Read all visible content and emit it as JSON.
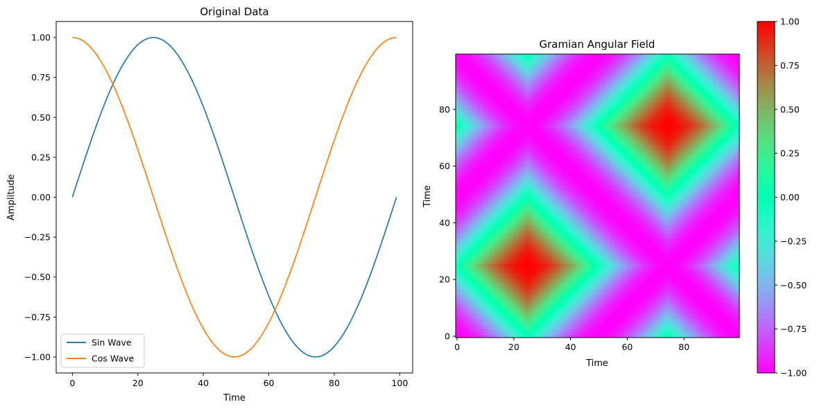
{
  "chart_data": [
    {
      "type": "line",
      "title": "Original Data",
      "xlabel": "Time",
      "ylabel": "Amplitude",
      "xlim": [
        -4.95,
        103.95
      ],
      "ylim": [
        -1.1,
        1.1
      ],
      "xticks": [
        0,
        20,
        40,
        60,
        80,
        100
      ],
      "yticks": [
        -1.0,
        -0.75,
        -0.5,
        -0.25,
        0.0,
        0.25,
        0.5,
        0.75,
        1.0
      ],
      "ytick_labels": [
        "−1.00",
        "−0.75",
        "−0.50",
        "−0.25",
        "0.00",
        "0.25",
        "0.50",
        "0.75",
        "1.00"
      ],
      "x": {
        "start": 0,
        "end": 99,
        "count": 100
      },
      "series": [
        {
          "name": "Sin Wave",
          "function": "sin",
          "period": 99,
          "color": "#1f77b4"
        },
        {
          "name": "Cos Wave",
          "function": "cos",
          "period": 99,
          "color": "#ff7f0e"
        }
      ],
      "legend": "lower-left",
      "grid": false
    },
    {
      "type": "heatmap",
      "title": "Gramian Angular Field",
      "xlabel": "Time",
      "ylabel": "Time",
      "size": 100,
      "field": "cos(phi_i + phi_j) of the Sin Wave series",
      "xlim": [
        0,
        99
      ],
      "ylim": [
        0,
        99
      ],
      "xticks": [
        0,
        20,
        40,
        60,
        80
      ],
      "yticks": [
        0,
        20,
        40,
        60,
        80
      ],
      "colormap": "rainbow",
      "colorbar": {
        "range": [
          -1,
          1
        ],
        "ticks": [
          -1.0,
          -0.75,
          -0.5,
          -0.25,
          0.0,
          0.25,
          0.5,
          0.75,
          1.0
        ],
        "tick_labels": [
          "−1.00",
          "−0.75",
          "−0.50",
          "−0.25",
          "0.00",
          "0.25",
          "0.50",
          "0.75",
          "1.00"
        ]
      },
      "origin": "lower"
    }
  ]
}
